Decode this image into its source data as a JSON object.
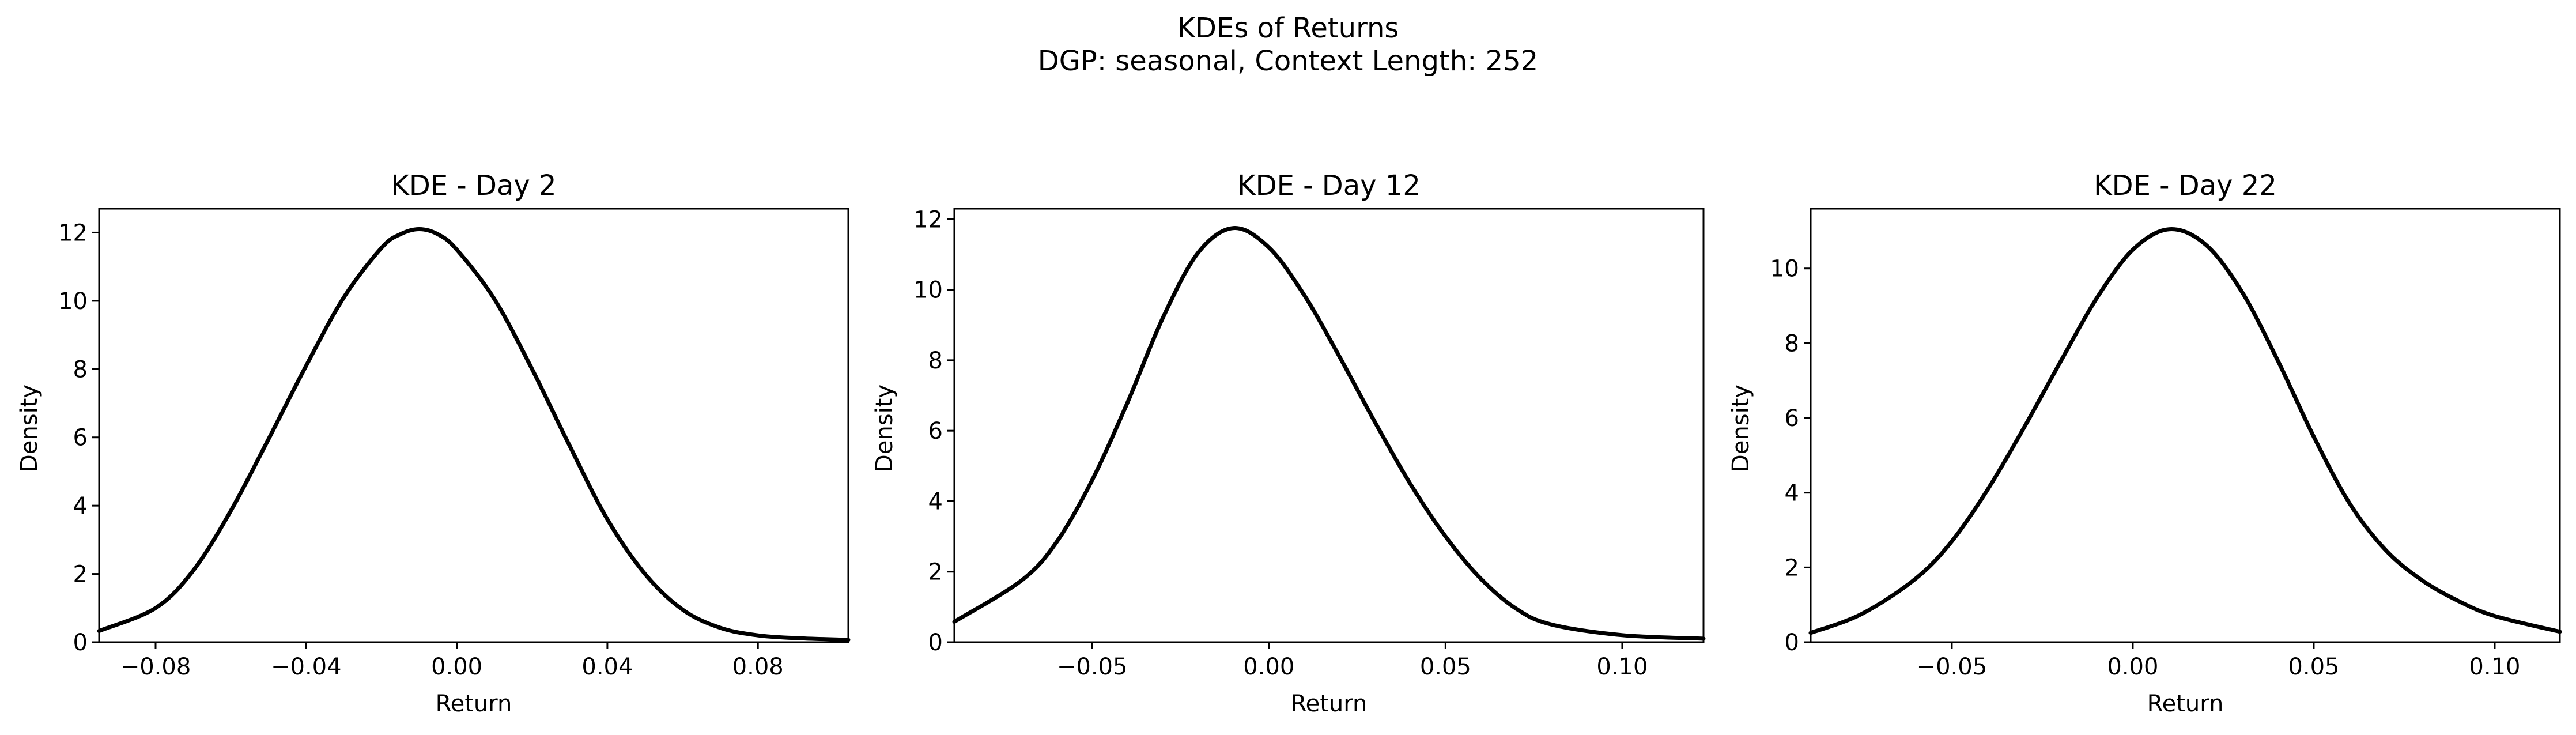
{
  "figure": {
    "title_line1": "KDEs of Returns",
    "title_line2": "DGP: seasonal, Context Length: 252"
  },
  "chart_data": [
    {
      "type": "line",
      "title": "KDE - Day 2",
      "xlabel": "Return",
      "ylabel": "Density",
      "xlim": [
        -0.095,
        0.104
      ],
      "ylim": [
        0,
        12.7
      ],
      "xticks": [
        -0.08,
        -0.04,
        0.0,
        0.04,
        0.08
      ],
      "xtick_labels": [
        "−0.08",
        "−0.04",
        "0.00",
        "0.04",
        "0.08"
      ],
      "yticks": [
        0,
        2,
        4,
        6,
        8,
        10,
        12
      ],
      "ytick_labels": [
        "0",
        "2",
        "4",
        "6",
        "8",
        "10",
        "12"
      ],
      "grid": false,
      "color": "#000000",
      "series": [
        {
          "x": [
            -0.095,
            -0.08,
            -0.07,
            -0.06,
            -0.05,
            -0.04,
            -0.03,
            -0.02,
            -0.015,
            -0.01,
            -0.005,
            0.0,
            0.01,
            0.02,
            0.03,
            0.04,
            0.05,
            0.06,
            0.07,
            0.08,
            0.09,
            0.104
          ],
          "y": [
            0.33,
            1.0,
            2.1,
            3.85,
            5.95,
            8.1,
            10.1,
            11.55,
            11.95,
            12.1,
            11.95,
            11.5,
            10.05,
            8.0,
            5.75,
            3.6,
            2.0,
            0.95,
            0.42,
            0.2,
            0.12,
            0.07
          ]
        }
      ]
    },
    {
      "type": "line",
      "title": "KDE - Day 12",
      "xlabel": "Return",
      "ylabel": "Density",
      "xlim": [
        -0.089,
        0.123
      ],
      "ylim": [
        0,
        12.3
      ],
      "xticks": [
        -0.05,
        0.0,
        0.05,
        0.1
      ],
      "xtick_labels": [
        "−0.05",
        "0.00",
        "0.05",
        "0.10"
      ],
      "yticks": [
        0,
        2,
        4,
        6,
        8,
        10,
        12
      ],
      "ytick_labels": [
        "0",
        "2",
        "4",
        "6",
        "8",
        "10",
        "12"
      ],
      "grid": false,
      "color": "#000000",
      "series": [
        {
          "x": [
            -0.089,
            -0.07,
            -0.06,
            -0.05,
            -0.04,
            -0.03,
            -0.02,
            -0.01,
            0.0,
            0.01,
            0.02,
            0.03,
            0.04,
            0.05,
            0.06,
            0.07,
            0.08,
            0.1,
            0.123
          ],
          "y": [
            0.58,
            1.75,
            2.85,
            4.6,
            6.8,
            9.2,
            11.05,
            11.75,
            11.2,
            9.85,
            8.1,
            6.25,
            4.5,
            3.0,
            1.8,
            0.95,
            0.5,
            0.2,
            0.1
          ]
        }
      ]
    },
    {
      "type": "line",
      "title": "KDE - Day 22",
      "xlabel": "Return",
      "ylabel": "Density",
      "xlim": [
        -0.089,
        0.118
      ],
      "ylim": [
        0,
        11.6
      ],
      "xticks": [
        -0.05,
        0.0,
        0.05,
        0.1
      ],
      "xtick_labels": [
        "−0.05",
        "0.00",
        "0.05",
        "0.10"
      ],
      "yticks": [
        0,
        2,
        4,
        6,
        8,
        10
      ],
      "ytick_labels": [
        "0",
        "2",
        "4",
        "6",
        "8",
        "10"
      ],
      "grid": false,
      "color": "#000000",
      "series": [
        {
          "x": [
            -0.089,
            -0.075,
            -0.06,
            -0.05,
            -0.04,
            -0.03,
            -0.02,
            -0.01,
            0.0,
            0.01,
            0.02,
            0.03,
            0.04,
            0.05,
            0.06,
            0.07,
            0.08,
            0.09,
            0.1,
            0.118
          ],
          "y": [
            0.25,
            0.75,
            1.7,
            2.7,
            4.1,
            5.75,
            7.5,
            9.2,
            10.5,
            11.05,
            10.65,
            9.4,
            7.55,
            5.5,
            3.7,
            2.45,
            1.65,
            1.1,
            0.7,
            0.28
          ]
        }
      ]
    }
  ]
}
